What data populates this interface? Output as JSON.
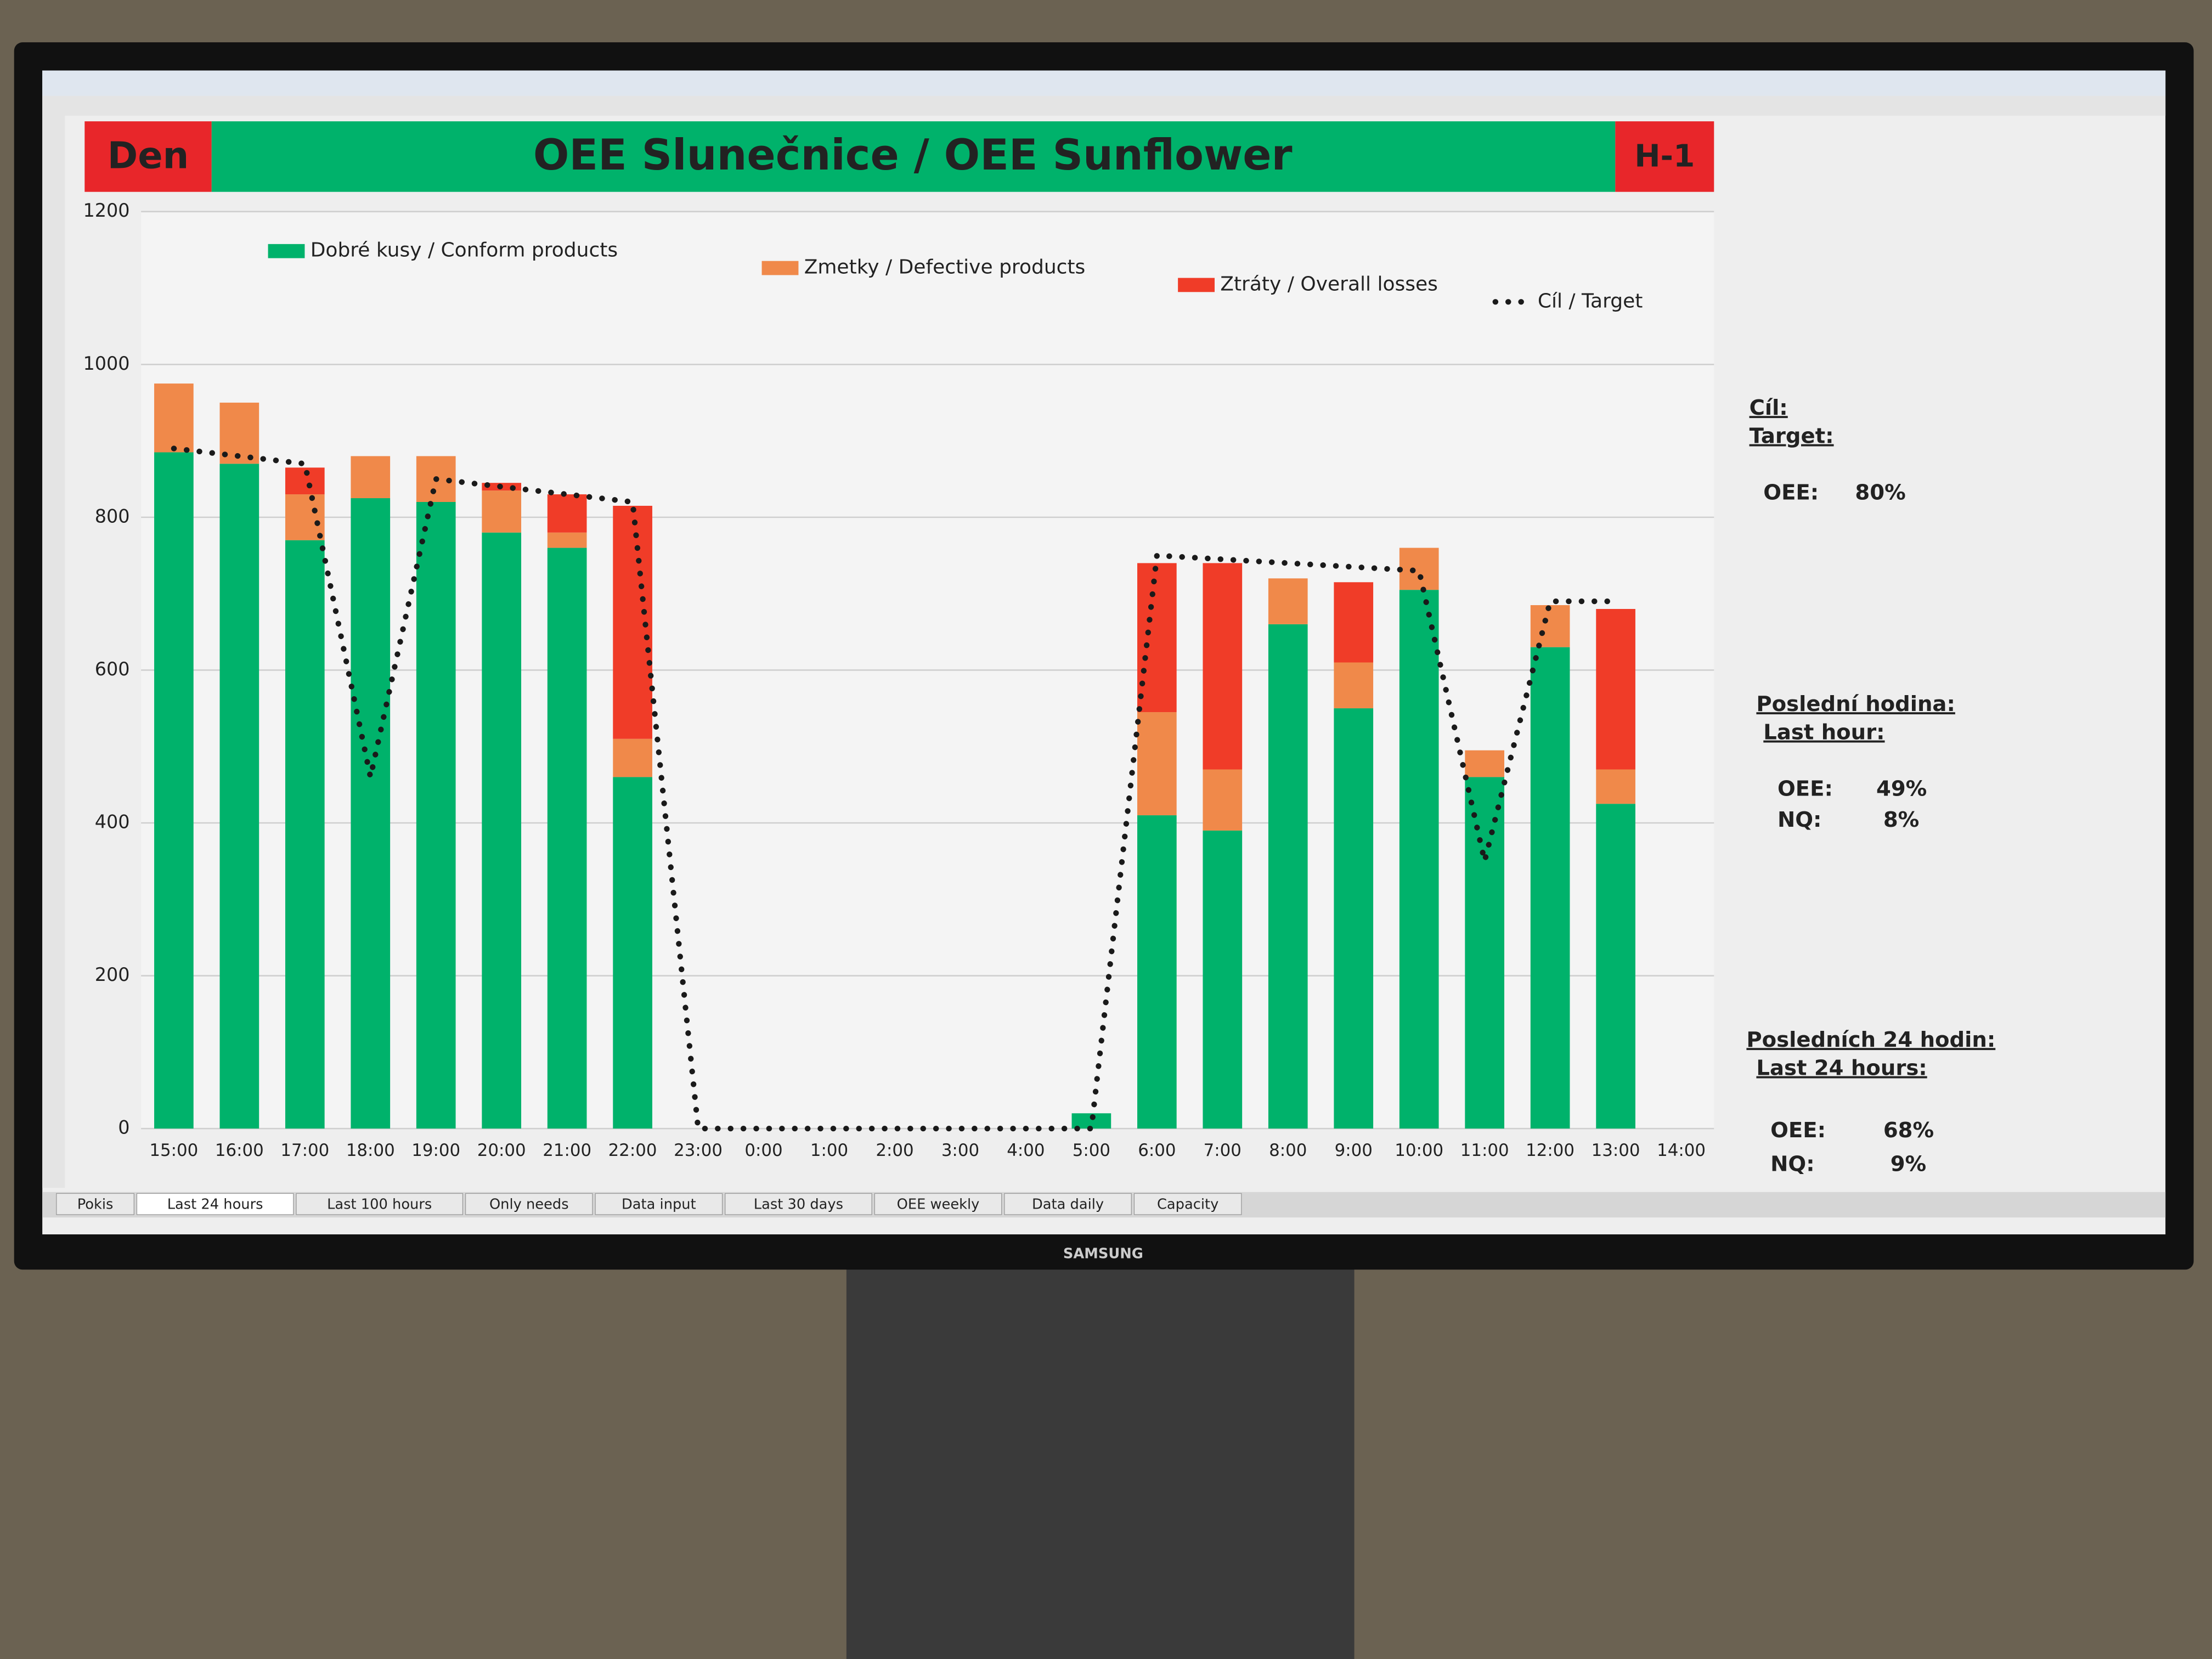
{
  "header": {
    "left_cell": "Den",
    "right_cell": "H-1"
  },
  "chart_data": {
    "type": "bar",
    "stacked": true,
    "title": "OEE Slunečnice / OEE Sunflower",
    "categories": [
      "15:00",
      "16:00",
      "17:00",
      "18:00",
      "19:00",
      "20:00",
      "21:00",
      "22:00",
      "23:00",
      "0:00",
      "1:00",
      "2:00",
      "3:00",
      "4:00",
      "5:00",
      "6:00",
      "7:00",
      "8:00",
      "9:00",
      "10:00",
      "11:00",
      "12:00",
      "13:00",
      "14:00"
    ],
    "series": [
      {
        "name": "Dobré kusy / Conform products",
        "color": "#00b26b",
        "values": [
          885,
          870,
          770,
          825,
          820,
          780,
          760,
          460,
          0,
          0,
          0,
          0,
          0,
          0,
          20,
          410,
          390,
          660,
          550,
          705,
          460,
          630,
          425,
          0
        ]
      },
      {
        "name": "Zmetky / Defective products",
        "color": "#f0894a",
        "values": [
          90,
          80,
          60,
          55,
          60,
          55,
          20,
          50,
          0,
          0,
          0,
          0,
          0,
          0,
          0,
          135,
          80,
          60,
          60,
          55,
          35,
          55,
          45,
          0
        ]
      },
      {
        "name": "Ztráty / Overall losses",
        "color": "#f03c28",
        "values": [
          0,
          0,
          35,
          0,
          0,
          10,
          50,
          305,
          0,
          0,
          0,
          0,
          0,
          0,
          0,
          195,
          270,
          0,
          105,
          0,
          0,
          0,
          210,
          0
        ]
      },
      {
        "name": "Cíl / Target",
        "type": "line",
        "color": "#1a1a1a",
        "dash": "dotted",
        "values": [
          890,
          880,
          870,
          460,
          850,
          840,
          830,
          820,
          0,
          0,
          0,
          0,
          0,
          0,
          0,
          750,
          745,
          740,
          735,
          730,
          350,
          690,
          690,
          null
        ]
      }
    ],
    "ylim": [
      0,
      1200
    ],
    "yticks": [
      0,
      200,
      400,
      600,
      800,
      1000,
      1200
    ],
    "grid": true,
    "legend": "top"
  },
  "side_panel": {
    "target": {
      "heading_cz": "Cíl:",
      "heading_en": "Target:",
      "oee_label": "OEE:",
      "oee": "80%"
    },
    "last_hour": {
      "heading_cz": "Poslední hodina:",
      "heading_en": "Last hour:",
      "oee_label": "OEE:",
      "oee": "49%",
      "nq_label": "NQ:",
      "nq": "8%"
    },
    "last_24": {
      "heading_cz": "Posledních 24 hodin:",
      "heading_en": "Last 24 hours:",
      "oee_label": "OEE:",
      "oee": "68%",
      "nq_label": "NQ:",
      "nq": "9%"
    }
  },
  "sheet_tabs": [
    "Pokis",
    "Last 24 hours",
    "Last 100 hours",
    "Only needs",
    "Data input",
    "Last 30 days",
    "OEE weekly",
    "Data daily",
    "Capacity"
  ],
  "bezel_brand": "SAMSUNG"
}
